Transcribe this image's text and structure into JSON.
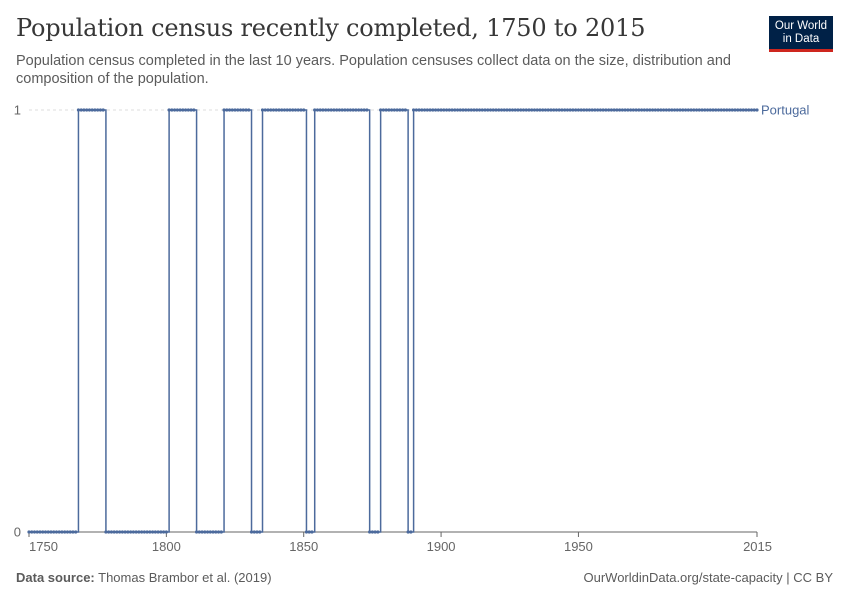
{
  "header": {
    "title": "Population census recently completed, 1750 to 2015",
    "subtitle": "Population census completed in the last 10 years. Population censuses collect data on the size, distribution and composition of the population."
  },
  "logo": {
    "line1": "Our World",
    "line2": "in Data"
  },
  "footer": {
    "source_label": "Data source:",
    "source_text": "Thomas Brambor et al. (2019)",
    "credit": "OurWorldinData.org/state-capacity | CC BY"
  },
  "colors": {
    "series": "#4c6a9c",
    "grid": "#dddddd",
    "axis": "#666666",
    "text": "#666666"
  },
  "chart_data": {
    "type": "line",
    "title": "Population census recently completed, 1750 to 2015",
    "xlabel": "",
    "ylabel": "",
    "xlim": [
      1750,
      2015
    ],
    "ylim": [
      0,
      1
    ],
    "x_ticks": [
      1750,
      1800,
      1850,
      1900,
      1950,
      2015
    ],
    "x_tick_labels": [
      "1750",
      "1800",
      "1850",
      "1900",
      "1950",
      "2015"
    ],
    "y_ticks": [
      0,
      1
    ],
    "y_tick_labels": [
      "0",
      "1"
    ],
    "grid": "horizontal dashed",
    "series": [
      {
        "name": "Portugal",
        "label": "Portugal",
        "annual": true,
        "intervals_value_1": [
          [
            1768,
            1777
          ],
          [
            1801,
            1810
          ],
          [
            1821,
            1830
          ],
          [
            1835,
            1850
          ],
          [
            1854,
            1873
          ],
          [
            1878,
            1887
          ],
          [
            1890,
            1910
          ],
          [
            1911,
            1980
          ],
          [
            1981,
            2015
          ]
        ]
      }
    ]
  }
}
